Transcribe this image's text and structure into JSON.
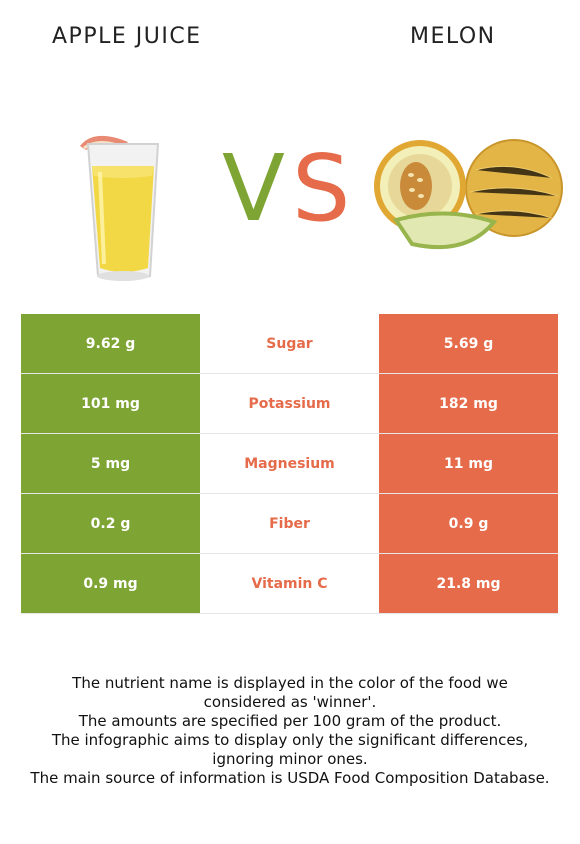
{
  "header": {
    "left_title": "APPLE JUICE",
    "right_title": "MELON"
  },
  "vs": {
    "v": "V",
    "s": "S"
  },
  "colors": {
    "winner_left": "#7ea433",
    "winner_right": "#e56b4a"
  },
  "rows": [
    {
      "left": "9.62 g",
      "nutrient": "Sugar",
      "right": "5.69 g"
    },
    {
      "left": "101 mg",
      "nutrient": "Potassium",
      "right": "182 mg"
    },
    {
      "left": "5 mg",
      "nutrient": "Magnesium",
      "right": "11 mg"
    },
    {
      "left": "0.2 g",
      "nutrient": "Fiber",
      "right": "0.9 g"
    },
    {
      "left": "0.9 mg",
      "nutrient": "Vitamin C",
      "right": "21.8 mg"
    }
  ],
  "notes": [
    "The nutrient name is displayed in the color of the food we considered as 'winner'.",
    "The amounts are specified per 100 gram of the product.",
    "The infographic aims to display only the significant differences, ignoring minor ones.",
    "The main source of information is USDA Food Composition Database."
  ]
}
